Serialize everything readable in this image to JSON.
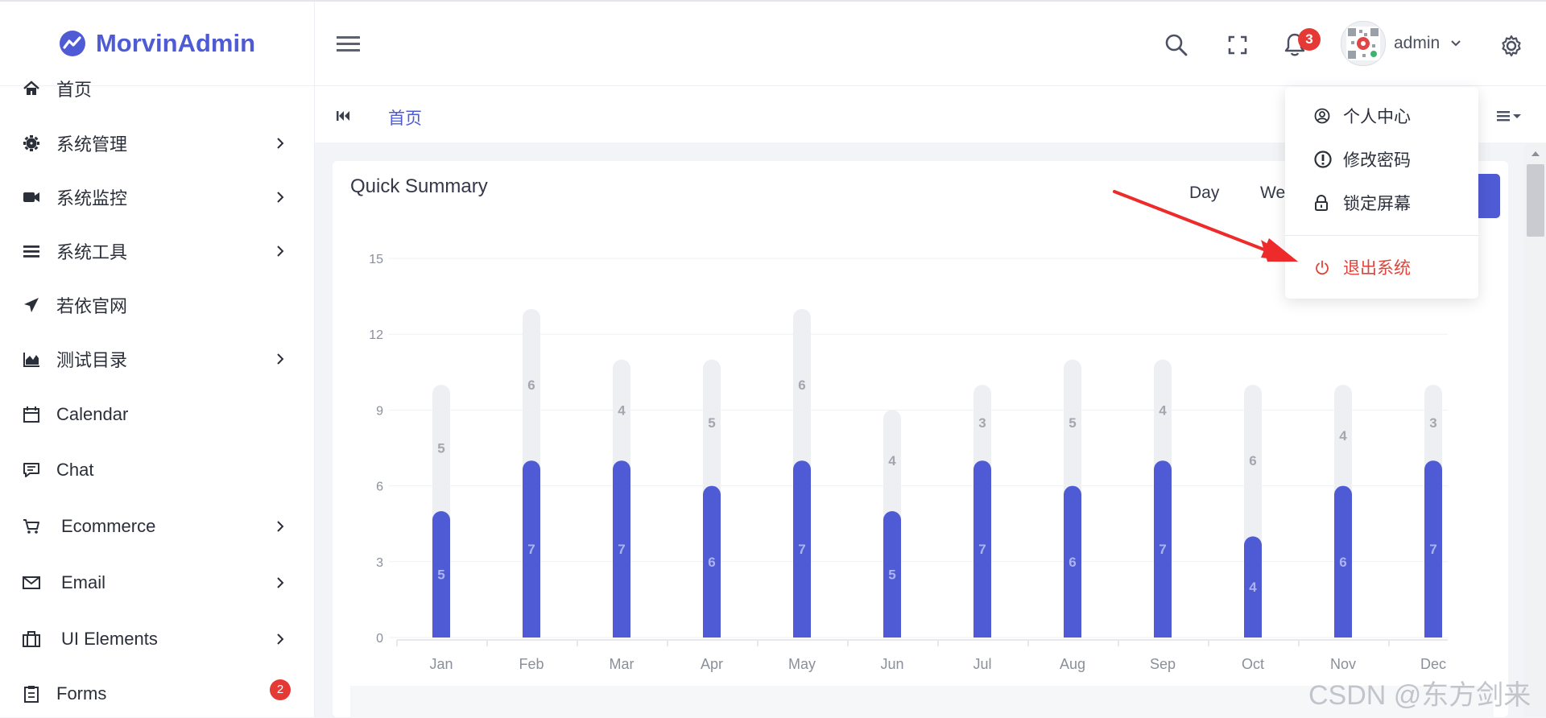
{
  "app": {
    "brand": "MorvinAdmin",
    "accent": "#4f5bd5"
  },
  "sidebar": {
    "items": [
      {
        "label": "首页",
        "icon": "home-icon",
        "has_arrow": false
      },
      {
        "label": "系统管理",
        "icon": "gear-icon",
        "has_arrow": true
      },
      {
        "label": "系统监控",
        "icon": "video-icon",
        "has_arrow": true
      },
      {
        "label": "系统工具",
        "icon": "bars-icon",
        "has_arrow": true
      },
      {
        "label": "若依官网",
        "icon": "send-icon",
        "has_arrow": false
      },
      {
        "label": "测试目录",
        "icon": "area-chart-icon",
        "has_arrow": true
      },
      {
        "label": "Calendar",
        "icon": "calendar-icon",
        "has_arrow": false
      },
      {
        "label": "Chat",
        "icon": "chat-icon",
        "has_arrow": false
      },
      {
        "label": "Ecommerce",
        "icon": "cart-icon",
        "has_arrow": true
      },
      {
        "label": "Email",
        "icon": "mail-icon",
        "has_arrow": true
      },
      {
        "label": "UI Elements",
        "icon": "briefcase-icon",
        "has_arrow": true
      },
      {
        "label": "Forms",
        "icon": "clipboard-icon",
        "has_arrow": false,
        "badge": "2"
      }
    ]
  },
  "header": {
    "notification_count": "3",
    "username": "admin"
  },
  "tags": {
    "home": "首页"
  },
  "card": {
    "title": "Quick Summary",
    "ranges": [
      "Day",
      "We"
    ]
  },
  "dropdown": {
    "profile": "个人中心",
    "change_password": "修改密码",
    "lock_screen": "锁定屏幕",
    "logout": "退出系统"
  },
  "chart_data": {
    "type": "bar",
    "stacked": true,
    "categories": [
      "Jan",
      "Feb",
      "Mar",
      "Apr",
      "May",
      "Jun",
      "Jul",
      "Aug",
      "Sep",
      "Oct",
      "Nov",
      "Dec"
    ],
    "series": [
      {
        "values": [
          5,
          7,
          7,
          6,
          7,
          5,
          7,
          6,
          7,
          4,
          6,
          7
        ],
        "color": "#4f5bd5"
      },
      {
        "values": [
          5,
          6,
          4,
          5,
          6,
          4,
          3,
          5,
          4,
          6,
          4,
          3
        ],
        "color": "#edeff3"
      }
    ],
    "ylim": [
      0,
      15
    ],
    "yticks": [
      0,
      3,
      6,
      9,
      12,
      15
    ],
    "grid": true
  },
  "watermark": "CSDN @东方剑来"
}
